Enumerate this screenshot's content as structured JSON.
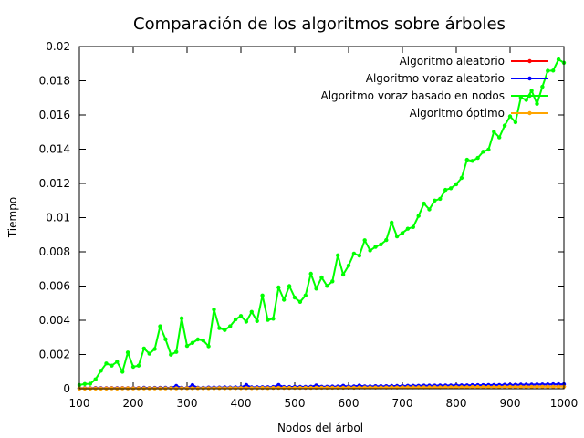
{
  "chart_data": {
    "type": "line",
    "title": "Comparación de los algoritmos sobre árboles",
    "xlabel": "Nodos del árbol",
    "ylabel": "Tiempo",
    "xlim": [
      100,
      1000
    ],
    "ylim": [
      0,
      0.02
    ],
    "x_ticks": [
      100,
      200,
      300,
      400,
      500,
      600,
      700,
      800,
      900,
      1000
    ],
    "x_tick_labels": [
      "100",
      "200",
      "300",
      "400",
      "500",
      "600",
      "700",
      "800",
      "900",
      "1000"
    ],
    "y_ticks": [
      0,
      0.002,
      0.004,
      0.006,
      0.008,
      0.01,
      0.012,
      0.014,
      0.016,
      0.018,
      0.02
    ],
    "y_tick_labels": [
      "0",
      "0.002",
      "0.004",
      "0.006",
      "0.008",
      "0.01",
      "0.012",
      "0.014",
      "0.016",
      "0.018",
      "0.02"
    ],
    "legend_position": "top-right",
    "grid": false,
    "x": [
      100,
      110,
      120,
      130,
      140,
      150,
      160,
      170,
      180,
      190,
      200,
      210,
      220,
      230,
      240,
      250,
      260,
      270,
      280,
      290,
      300,
      310,
      320,
      330,
      340,
      350,
      360,
      370,
      380,
      390,
      400,
      410,
      420,
      430,
      440,
      450,
      460,
      470,
      480,
      490,
      500,
      510,
      520,
      530,
      540,
      550,
      560,
      570,
      580,
      590,
      600,
      610,
      620,
      630,
      640,
      650,
      660,
      670,
      680,
      690,
      700,
      710,
      720,
      730,
      740,
      750,
      760,
      770,
      780,
      790,
      800,
      810,
      820,
      830,
      840,
      850,
      860,
      870,
      880,
      890,
      900,
      910,
      920,
      930,
      940,
      950,
      960,
      970,
      980,
      990,
      1000
    ],
    "series": [
      {
        "name": "Algoritmo aleatorio",
        "color": "#ff0000",
        "values": [
          3e-05,
          3e-05,
          3e-05,
          4e-05,
          3e-05,
          3e-05,
          4e-05,
          3e-05,
          4e-05,
          3e-05,
          3e-05,
          4e-05,
          4e-05,
          3e-05,
          4e-05,
          5e-05,
          4e-05,
          4e-05,
          5e-05,
          4e-05,
          4e-05,
          5e-05,
          5e-05,
          4e-05,
          5e-05,
          5e-05,
          5e-05,
          5e-05,
          6e-05,
          5e-05,
          5e-05,
          6e-05,
          5e-05,
          6e-05,
          6e-05,
          6e-05,
          6e-05,
          7e-05,
          6e-05,
          6e-05,
          7e-05,
          7e-05,
          6e-05,
          7e-05,
          7e-05,
          8e-05,
          7e-05,
          7e-05,
          8e-05,
          8e-05,
          7e-05,
          8e-05,
          8e-05,
          9e-05,
          8e-05,
          8e-05,
          9e-05,
          9e-05,
          8e-05,
          9e-05,
          9e-05,
          0.0001,
          9e-05,
          9e-05,
          0.0001,
          0.0001,
          0.0001,
          0.0001,
          0.00011,
          0.0001,
          0.0001,
          0.00011,
          0.00011,
          0.00011,
          0.00011,
          0.00011,
          0.00012,
          0.00011,
          0.00012,
          0.00012,
          0.00012,
          0.00012,
          0.00012,
          0.00013,
          0.00012,
          0.00013,
          0.00013,
          0.00013,
          0.00013,
          0.00014,
          0.00014
        ]
      },
      {
        "name": "Algoritmo voraz aleatorio",
        "color": "#0000ff",
        "values": [
          2e-05,
          2e-05,
          2e-05,
          3e-05,
          3e-05,
          2e-05,
          3e-05,
          3e-05,
          3e-05,
          3e-05,
          4e-05,
          4e-05,
          6e-05,
          4e-05,
          5e-05,
          5e-05,
          6e-05,
          5e-05,
          0.00016,
          6e-05,
          5e-05,
          0.00021,
          6e-05,
          6e-05,
          7e-05,
          7e-05,
          7e-05,
          8e-05,
          7e-05,
          8e-05,
          8e-05,
          0.00022,
          8e-05,
          9e-05,
          9e-05,
          9e-05,
          0.0001,
          0.00022,
          0.0001,
          0.0001,
          0.00011,
          0.00011,
          0.00011,
          0.00012,
          0.00019,
          0.00012,
          0.00012,
          0.00013,
          0.00013,
          0.00017,
          0.00013,
          0.00014,
          0.00018,
          0.00014,
          0.00014,
          0.00015,
          0.00015,
          0.00015,
          0.00016,
          0.00016,
          0.00016,
          0.00017,
          0.00017,
          0.00017,
          0.00018,
          0.00018,
          0.00018,
          0.00019,
          0.00019,
          0.00019,
          0.0002,
          0.0002,
          0.0002,
          0.00021,
          0.00021,
          0.00021,
          0.00022,
          0.00022,
          0.00022,
          0.00023,
          0.00023,
          0.00023,
          0.00024,
          0.00024,
          0.00024,
          0.00025,
          0.00025,
          0.00025,
          0.00026,
          0.00026,
          0.00026
        ]
      },
      {
        "name": "Algoritmo voraz basado en nodos",
        "color": "#00ff00",
        "values": [
          0.00022,
          0.00028,
          0.00029,
          0.00055,
          0.00105,
          0.00148,
          0.00135,
          0.00158,
          0.00099,
          0.00212,
          0.00128,
          0.00135,
          0.00235,
          0.00205,
          0.00232,
          0.00365,
          0.00289,
          0.00199,
          0.00215,
          0.00412,
          0.0025,
          0.00268,
          0.00288,
          0.00282,
          0.00248,
          0.00463,
          0.00354,
          0.00343,
          0.00365,
          0.00405,
          0.00425,
          0.00392,
          0.00449,
          0.00396,
          0.00545,
          0.00402,
          0.00409,
          0.00592,
          0.0052,
          0.006,
          0.00533,
          0.00508,
          0.00545,
          0.00672,
          0.00585,
          0.0065,
          0.00601,
          0.00628,
          0.0078,
          0.00667,
          0.0072,
          0.0079,
          0.00778,
          0.00868,
          0.00808,
          0.00829,
          0.00843,
          0.00869,
          0.00971,
          0.0089,
          0.0091,
          0.00935,
          0.00945,
          0.0101,
          0.01082,
          0.01048,
          0.011,
          0.0111,
          0.01162,
          0.01172,
          0.01195,
          0.01232,
          0.01338,
          0.01332,
          0.01349,
          0.01385,
          0.01398,
          0.01502,
          0.01469,
          0.01538,
          0.01592,
          0.01558,
          0.01702,
          0.01688,
          0.01742,
          0.01665,
          0.01765,
          0.01858,
          0.0186,
          0.01925,
          0.01905
        ]
      },
      {
        "name": "Algoritmo óptimo",
        "color": "#ffa500",
        "values": [
          1e-05,
          1e-05,
          1e-05,
          1e-05,
          1e-05,
          1e-05,
          2e-05,
          1e-05,
          2e-05,
          2e-05,
          2e-05,
          2e-05,
          2e-05,
          2e-05,
          2e-05,
          2e-05,
          2e-05,
          3e-05,
          2e-05,
          3e-05,
          3e-05,
          3e-05,
          3e-05,
          3e-05,
          3e-05,
          3e-05,
          4e-05,
          3e-05,
          4e-05,
          4e-05,
          4e-05,
          4e-05,
          4e-05,
          4e-05,
          5e-05,
          4e-05,
          5e-05,
          5e-05,
          5e-05,
          5e-05,
          5e-05,
          5e-05,
          6e-05,
          5e-05,
          6e-05,
          6e-05,
          6e-05,
          6e-05,
          6e-05,
          6e-05,
          7e-05,
          6e-05,
          7e-05,
          7e-05,
          7e-05,
          7e-05,
          7e-05,
          7e-05,
          8e-05,
          7e-05,
          8e-05,
          8e-05,
          8e-05,
          8e-05,
          8e-05,
          8e-05,
          9e-05,
          8e-05,
          9e-05,
          9e-05,
          9e-05,
          9e-05,
          9e-05,
          0.0001,
          0.0001,
          0.0001,
          0.0001,
          0.0001,
          0.0001,
          0.00011,
          0.00011,
          0.00011,
          0.00011,
          0.00011,
          0.00011,
          0.00012,
          0.00012,
          0.00012,
          0.00012,
          0.00012,
          0.00012
        ]
      }
    ]
  }
}
